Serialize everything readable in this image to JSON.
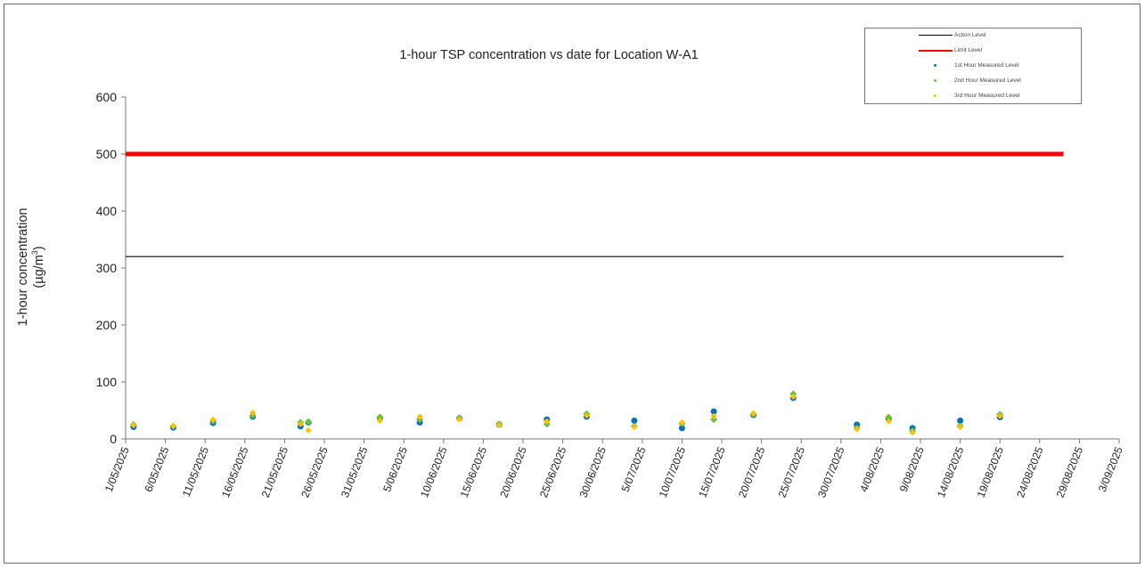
{
  "chart_data": {
    "type": "scatter",
    "title": "1-hour TSP concentration vs date for Location W-A1",
    "ylabel_line1": "1-hour concentration",
    "ylabel_line2_prefix": "(µg/m",
    "ylabel_line2_sup": "3",
    "ylabel_line2_suffix": ")",
    "ylim": [
      0,
      600
    ],
    "yticks": [
      "0",
      "100",
      "200",
      "300",
      "400",
      "500",
      "600"
    ],
    "xlim": [
      "2025-05-01",
      "2025-09-03"
    ],
    "xticks": [
      "1/05/2025",
      "6/05/2025",
      "11/05/2025",
      "16/05/2025",
      "21/05/2025",
      "26/05/2025",
      "31/05/2025",
      "5/06/2025",
      "10/06/2025",
      "15/06/2025",
      "20/06/2025",
      "25/06/2025",
      "30/06/2025",
      "5/07/2025",
      "10/07/2025",
      "15/07/2025",
      "20/07/2025",
      "25/07/2025",
      "30/07/2025",
      "4/08/2025",
      "9/08/2025",
      "14/08/2025",
      "19/08/2025",
      "24/08/2025",
      "29/08/2025",
      "3/09/2025"
    ],
    "grid": false,
    "legend_position": "top-right",
    "reference_lines": [
      {
        "name": "Action Level",
        "y": 320,
        "x_range": [
          "2025-05-01",
          "2025-08-27"
        ],
        "color": "#000000"
      },
      {
        "name": "Limit Level",
        "y": 500,
        "x_range": [
          "2025-05-01",
          "2025-08-27"
        ],
        "color": "#ff0000"
      }
    ],
    "series": [
      {
        "name": "1st Hour Measured Level",
        "color": "#0070c0",
        "points": [
          [
            "2025-05-02",
            21
          ],
          [
            "2025-05-07",
            20
          ],
          [
            "2025-05-12",
            28
          ],
          [
            "2025-05-17",
            39
          ],
          [
            "2025-05-23",
            22
          ],
          [
            "2025-05-24",
            29
          ],
          [
            "2025-06-02",
            37
          ],
          [
            "2025-06-07",
            29
          ],
          [
            "2025-06-12",
            36
          ],
          [
            "2025-06-17",
            25
          ],
          [
            "2025-06-23",
            34
          ],
          [
            "2025-06-28",
            39
          ],
          [
            "2025-07-04",
            32
          ],
          [
            "2025-07-10",
            19
          ],
          [
            "2025-07-14",
            48
          ],
          [
            "2025-07-19",
            42
          ],
          [
            "2025-07-24",
            72
          ],
          [
            "2025-08-01",
            25
          ],
          [
            "2025-08-05",
            36
          ],
          [
            "2025-08-08",
            19
          ],
          [
            "2025-08-14",
            32
          ],
          [
            "2025-08-19",
            38
          ]
        ]
      },
      {
        "name": "2nd Hour Measured Level",
        "color": "#70c040",
        "points": [
          [
            "2025-05-02",
            25
          ],
          [
            "2025-05-07",
            22
          ],
          [
            "2025-05-12",
            31
          ],
          [
            "2025-05-17",
            41
          ],
          [
            "2025-05-23",
            29
          ],
          [
            "2025-05-24",
            30
          ],
          [
            "2025-06-02",
            38
          ],
          [
            "2025-06-07",
            34
          ],
          [
            "2025-06-12",
            37
          ],
          [
            "2025-06-17",
            26
          ],
          [
            "2025-06-23",
            26
          ],
          [
            "2025-06-28",
            44
          ],
          [
            "2025-07-04",
            22
          ],
          [
            "2025-07-10",
            27
          ],
          [
            "2025-07-14",
            34
          ],
          [
            "2025-07-19",
            43
          ],
          [
            "2025-07-24",
            79
          ],
          [
            "2025-08-01",
            19
          ],
          [
            "2025-08-05",
            38
          ],
          [
            "2025-08-08",
            14
          ],
          [
            "2025-08-14",
            23
          ],
          [
            "2025-08-19",
            43
          ]
        ]
      },
      {
        "name": "3rd Hour Measured Level",
        "color": "#ffc000",
        "points": [
          [
            "2025-05-02",
            24
          ],
          [
            "2025-05-07",
            23
          ],
          [
            "2025-05-12",
            34
          ],
          [
            "2025-05-17",
            46
          ],
          [
            "2025-05-23",
            26
          ],
          [
            "2025-05-24",
            15
          ],
          [
            "2025-06-02",
            32
          ],
          [
            "2025-06-07",
            39
          ],
          [
            "2025-06-12",
            34
          ],
          [
            "2025-06-17",
            24
          ],
          [
            "2025-06-23",
            31
          ],
          [
            "2025-06-28",
            41
          ],
          [
            "2025-07-04",
            21
          ],
          [
            "2025-07-10",
            29
          ],
          [
            "2025-07-14",
            40
          ],
          [
            "2025-07-19",
            45
          ],
          [
            "2025-07-24",
            74
          ],
          [
            "2025-08-01",
            17
          ],
          [
            "2025-08-05",
            31
          ],
          [
            "2025-08-08",
            11
          ],
          [
            "2025-08-14",
            21
          ],
          [
            "2025-08-19",
            40
          ]
        ]
      }
    ]
  }
}
